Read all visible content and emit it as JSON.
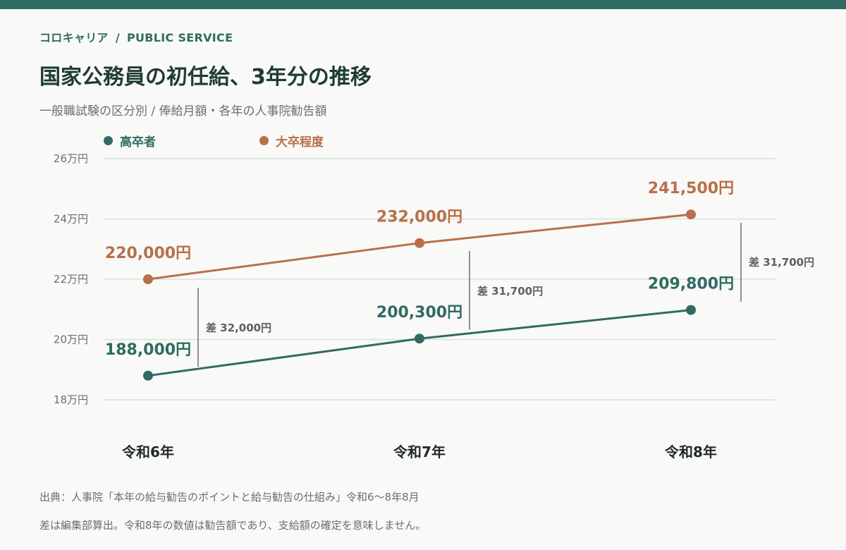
{
  "brand": {
    "name": "コロキャリア",
    "separator": "/",
    "section": "PUBLIC SERVICE"
  },
  "title": "国家公務員の初任給、3年分の推移",
  "subtitle": "一般職試験の区分別 / 俸給月額・各年の人事院勧告額",
  "colors": {
    "accent_top": "#2f6b62",
    "series_high_school": "#2f6b62",
    "series_university": "#b8704a"
  },
  "chart_data": {
    "type": "line",
    "title": "国家公務員の初任給、3年分の推移",
    "categories": [
      "令和6年",
      "令和7年",
      "令和8年"
    ],
    "y_ticks": [
      {
        "value": 180000,
        "label": "18万円"
      },
      {
        "value": 200000,
        "label": "20万円"
      },
      {
        "value": 220000,
        "label": "22万円"
      },
      {
        "value": 240000,
        "label": "24万円"
      },
      {
        "value": 260000,
        "label": "26万円"
      }
    ],
    "ylim": [
      180000,
      260000
    ],
    "grid": true,
    "legend_position": "top-left",
    "series": [
      {
        "name": "高卒者",
        "color": "#2f6b62",
        "values": [
          188000,
          200300,
          209800
        ],
        "labels": [
          "188,000円",
          "200,300円",
          "209,800円"
        ]
      },
      {
        "name": "大卒程度",
        "color": "#b8704a",
        "values": [
          220000,
          232000,
          241500
        ],
        "labels": [
          "220,000円",
          "232,000円",
          "241,500円"
        ]
      }
    ],
    "differences": [
      {
        "category": "令和6年",
        "value": 32000,
        "label": "差 32,000円"
      },
      {
        "category": "令和7年",
        "value": 31700,
        "label": "差 31,700円"
      },
      {
        "category": "令和8年",
        "value": 31700,
        "label": "差 31,700円"
      }
    ]
  },
  "source": {
    "line1": "出典：人事院「本年の給与勧告のポイントと給与勧告の仕組み」令和6〜8年8月",
    "line2": "差は編集部算出。令和8年の数値は勧告額であり、支給額の確定を意味しません。"
  }
}
